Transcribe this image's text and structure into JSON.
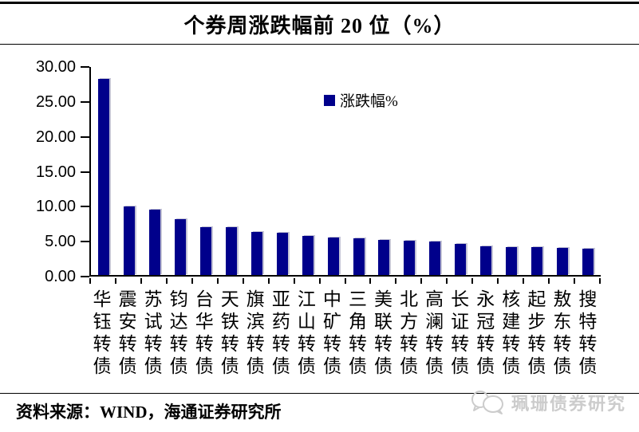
{
  "title": "个券周涨跌幅前 20 位（%）",
  "legend": {
    "label": "涨跌幅%"
  },
  "source": "资料来源：WIND，海通证券研究所",
  "watermark": {
    "text": "珮珊债券研究"
  },
  "colors": {
    "bar": "#00008B",
    "bar_edge": "#c3c3d5",
    "axis": "#000000",
    "watermark": "#cccccc"
  },
  "chart_data": {
    "type": "bar",
    "title": "个券周涨跌幅前 20 位（%）",
    "legend_entries": [
      "涨跌幅%"
    ],
    "legend_position": "inside-top-center",
    "grid": false,
    "categories": [
      "华钰转债",
      "震安转债",
      "苏试转债",
      "钧达转债",
      "台华转债",
      "天铁转债",
      "旗滨转债",
      "亚药转债",
      "江山转债",
      "中矿转债",
      "三角转债",
      "美联转债",
      "北方转债",
      "高澜转债",
      "长证转债",
      "永冠转债",
      "核建转债",
      "起步转债",
      "敖东转债",
      "搜特转债"
    ],
    "values": [
      28.1,
      9.8,
      9.4,
      8.0,
      6.9,
      6.8,
      6.2,
      6.0,
      5.6,
      5.4,
      5.3,
      5.0,
      4.9,
      4.8,
      4.5,
      4.1,
      4.0,
      4.0,
      3.9,
      3.8
    ],
    "xlabel": "",
    "ylabel": "",
    "ylim": [
      0,
      30
    ],
    "ytick_step": 5,
    "ytick_labels": [
      "30.00",
      "25.00",
      "20.00",
      "15.00",
      "10.00",
      "5.00",
      "0.00"
    ]
  }
}
